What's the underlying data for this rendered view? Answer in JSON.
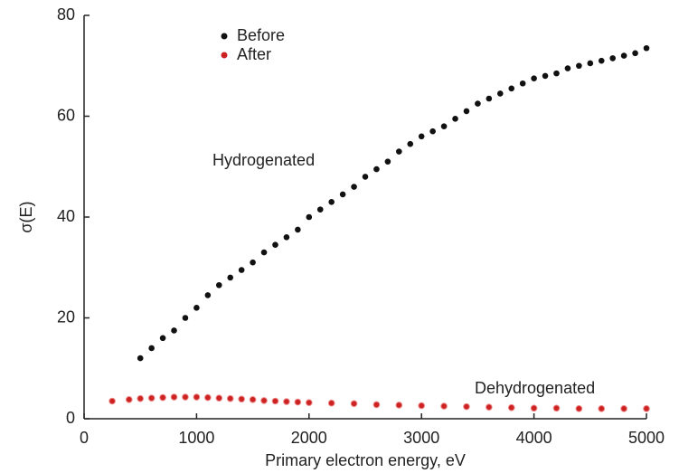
{
  "chart_data": {
    "type": "scatter",
    "xlabel": "Primary electron energy, eV",
    "ylabel": "σ(E)",
    "annotations": [
      "Hydrogenated",
      "Dehydrogenated"
    ],
    "xlim": [
      0,
      5000
    ],
    "xticks": [
      0,
      1000,
      2000,
      3000,
      4000,
      5000
    ],
    "ylim": [
      0,
      80
    ],
    "yticks": [
      0,
      20,
      40,
      60,
      80
    ],
    "legend": "upper left",
    "series": [
      {
        "name": "Before",
        "color": "#111111",
        "x": [
          500,
          600,
          700,
          800,
          900,
          1000,
          1100,
          1200,
          1300,
          1400,
          1500,
          1600,
          1700,
          1800,
          1900,
          2000,
          2100,
          2200,
          2300,
          2400,
          2500,
          2600,
          2700,
          2800,
          2900,
          3000,
          3100,
          3200,
          3300,
          3400,
          3500,
          3600,
          3700,
          3800,
          3900,
          4000,
          4100,
          4200,
          4300,
          4400,
          4500,
          4600,
          4700,
          4800,
          4900,
          5000
        ],
        "values": [
          12,
          14,
          16,
          17.5,
          20,
          22,
          24.5,
          26.5,
          28,
          29.5,
          31,
          33,
          34.5,
          36,
          37.5,
          40,
          41.5,
          43,
          44.5,
          46,
          48,
          49.5,
          51,
          53,
          54.5,
          56,
          57,
          58,
          59.5,
          61,
          62.5,
          63.5,
          64.5,
          65.5,
          66.5,
          67.5,
          68,
          68.5,
          69.5,
          70,
          70.5,
          71,
          71.5,
          72,
          72.5,
          73.5
        ]
      },
      {
        "name": "After",
        "color": "#cc2222",
        "x": [
          250,
          400,
          500,
          600,
          700,
          800,
          900,
          1000,
          1100,
          1200,
          1300,
          1400,
          1500,
          1600,
          1700,
          1800,
          1900,
          2000,
          2200,
          2400,
          2600,
          2800,
          3000,
          3200,
          3400,
          3600,
          3800,
          4000,
          4200,
          4400,
          4600,
          4800,
          5000
        ],
        "values": [
          3.5,
          3.8,
          4,
          4.1,
          4.2,
          4.3,
          4.3,
          4.3,
          4.2,
          4.1,
          4,
          3.9,
          3.8,
          3.6,
          3.5,
          3.4,
          3.3,
          3.2,
          3.1,
          3,
          2.8,
          2.7,
          2.6,
          2.5,
          2.4,
          2.3,
          2.2,
          2.1,
          2.1,
          2,
          2,
          2,
          2
        ]
      }
    ]
  }
}
